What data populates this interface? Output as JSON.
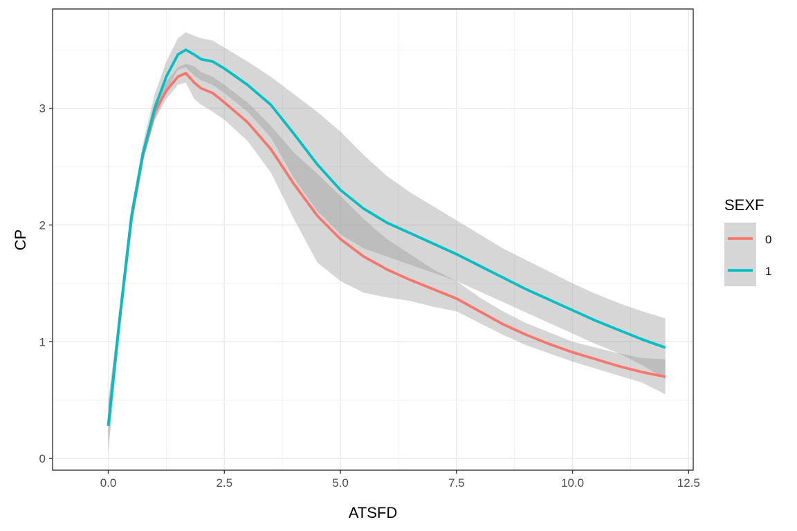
{
  "chart_data": {
    "type": "line",
    "xlabel": "ATSFD",
    "ylabel": "CP",
    "xlim": [
      -1.2,
      12.6
    ],
    "ylim": [
      -0.1,
      3.85
    ],
    "x_ticks": [
      0.0,
      2.5,
      5.0,
      7.5,
      10.0,
      12.5
    ],
    "x_tick_labels": [
      "0.0",
      "2.5",
      "5.0",
      "7.5",
      "10.0",
      "12.5"
    ],
    "y_ticks": [
      0,
      1,
      2,
      3
    ],
    "y_tick_labels": [
      "0",
      "1",
      "2",
      "3"
    ],
    "grid": true,
    "legend": {
      "title": "SEXF",
      "placement": "right"
    },
    "series": [
      {
        "name": "0",
        "color": "#F8766D",
        "x": [
          0,
          0.25,
          0.5,
          0.75,
          1.0,
          1.25,
          1.5,
          1.67,
          1.85,
          2.0,
          2.25,
          2.5,
          3.0,
          3.5,
          4.0,
          4.5,
          5.0,
          5.5,
          6.0,
          6.5,
          7.0,
          7.5,
          8.0,
          8.5,
          9.0,
          9.5,
          10.0,
          10.5,
          11.0,
          11.5,
          12.0
        ],
        "y": [
          0.28,
          1.2,
          2.05,
          2.6,
          2.97,
          3.15,
          3.27,
          3.3,
          3.22,
          3.17,
          3.13,
          3.05,
          2.88,
          2.65,
          2.35,
          2.08,
          1.88,
          1.73,
          1.62,
          1.53,
          1.45,
          1.37,
          1.26,
          1.15,
          1.06,
          0.98,
          0.91,
          0.85,
          0.79,
          0.74,
          0.7
        ],
        "lower": [
          0.05,
          1.1,
          1.98,
          2.55,
          2.9,
          3.08,
          3.2,
          3.22,
          3.08,
          3.03,
          2.97,
          2.9,
          2.72,
          2.45,
          2.05,
          1.68,
          1.52,
          1.42,
          1.38,
          1.35,
          1.3,
          1.26,
          1.16,
          1.06,
          0.97,
          0.9,
          0.83,
          0.77,
          0.71,
          0.65,
          0.55
        ],
        "upper": [
          0.5,
          1.3,
          2.12,
          2.65,
          3.05,
          3.23,
          3.35,
          3.38,
          3.36,
          3.31,
          3.27,
          3.2,
          3.05,
          2.85,
          2.62,
          2.44,
          2.25,
          2.05,
          1.88,
          1.75,
          1.62,
          1.52,
          1.38,
          1.26,
          1.16,
          1.08,
          1.0,
          0.95,
          0.9,
          0.86,
          0.85
        ]
      },
      {
        "name": "1",
        "color": "#00BFC4",
        "x": [
          0,
          0.25,
          0.5,
          0.75,
          1.0,
          1.25,
          1.5,
          1.67,
          1.85,
          2.0,
          2.25,
          2.5,
          3.0,
          3.5,
          4.0,
          4.5,
          5.0,
          5.5,
          6.0,
          6.5,
          7.0,
          7.5,
          8.0,
          8.5,
          9.0,
          9.5,
          10.0,
          10.5,
          11.0,
          11.5,
          12.0
        ],
        "y": [
          0.28,
          1.22,
          2.08,
          2.62,
          3.0,
          3.27,
          3.46,
          3.5,
          3.46,
          3.42,
          3.4,
          3.34,
          3.2,
          3.03,
          2.78,
          2.52,
          2.3,
          2.14,
          2.02,
          1.93,
          1.84,
          1.75,
          1.65,
          1.55,
          1.45,
          1.36,
          1.27,
          1.18,
          1.1,
          1.02,
          0.95
        ],
        "lower": [
          0.12,
          1.15,
          2.02,
          2.55,
          2.9,
          3.15,
          3.33,
          3.35,
          3.28,
          3.24,
          3.2,
          3.13,
          2.97,
          2.75,
          2.4,
          2.12,
          1.92,
          1.8,
          1.73,
          1.66,
          1.59,
          1.52,
          1.43,
          1.34,
          1.25,
          1.16,
          1.07,
          0.98,
          0.9,
          0.8,
          0.68
        ],
        "upper": [
          0.45,
          1.3,
          2.15,
          2.7,
          3.12,
          3.4,
          3.6,
          3.65,
          3.62,
          3.6,
          3.58,
          3.52,
          3.4,
          3.27,
          3.12,
          2.97,
          2.8,
          2.6,
          2.42,
          2.28,
          2.16,
          2.04,
          1.92,
          1.8,
          1.7,
          1.6,
          1.5,
          1.41,
          1.33,
          1.26,
          1.2
        ]
      }
    ]
  }
}
